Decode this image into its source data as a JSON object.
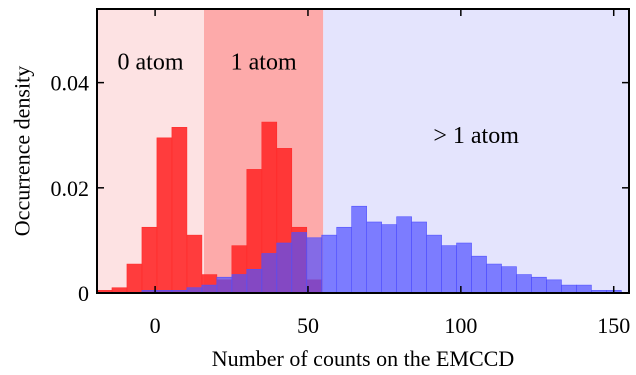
{
  "chart_data": {
    "type": "bar",
    "title": "",
    "xlabel": "Number of counts on the EMCCD",
    "ylabel": "Occurrence density",
    "xlim": [
      -19,
      155
    ],
    "ylim": [
      0,
      0.054
    ],
    "xticks": [
      0,
      50,
      100,
      150
    ],
    "yticks": [
      0,
      0.02,
      0.04
    ],
    "ytick_labels": [
      "0",
      "0.02",
      "0.04"
    ],
    "xtick_labels": [
      "0",
      "50",
      "100",
      "150"
    ],
    "grid": false,
    "bin_width": 4.9,
    "regions": [
      {
        "label": "0 atom",
        "x_start": -19,
        "x_end": 16,
        "color": "#fde2e3"
      },
      {
        "label": "1 atom",
        "x_start": 16,
        "x_end": 55,
        "color": "#fdaaaa"
      },
      {
        "label": "> 1 atom",
        "x_start": 55,
        "x_end": 155,
        "color": "#e4e4fd"
      }
    ],
    "series": [
      {
        "color": "#ff2a2a",
        "x": [
          -19,
          -14.1,
          -9.2,
          -4.3,
          0.6,
          5.5,
          10.4,
          15.3,
          20.2,
          25.1,
          30.0,
          34.9,
          39.8,
          44.7,
          49.6
        ],
        "values": [
          0.0005,
          0.001,
          0.0055,
          0.0125,
          0.0295,
          0.0315,
          0.011,
          0.0035,
          0.0025,
          0.009,
          0.0235,
          0.0325,
          0.0275,
          0.0125,
          0.0025
        ]
      },
      {
        "color": "#5050ff",
        "x": [
          -4.3,
          0.6,
          5.5,
          10.4,
          15.3,
          20.2,
          25.1,
          30.0,
          34.9,
          39.8,
          44.7,
          49.6,
          54.5,
          59.4,
          64.3,
          69.2,
          74.1,
          79.0,
          83.9,
          88.8,
          93.7,
          98.6,
          103.5,
          108.4,
          113.3,
          118.2,
          123.1,
          128.0,
          132.9,
          137.8,
          142.7,
          147.6
        ],
        "values": [
          0.0005,
          0.0005,
          0.0005,
          0.001,
          0.0015,
          0.003,
          0.0035,
          0.0045,
          0.0075,
          0.0095,
          0.0115,
          0.0105,
          0.011,
          0.0125,
          0.0165,
          0.0135,
          0.013,
          0.0145,
          0.0135,
          0.011,
          0.009,
          0.0095,
          0.007,
          0.0055,
          0.005,
          0.0035,
          0.003,
          0.0025,
          0.0015,
          0.0015,
          0.0005,
          0.0005
        ]
      }
    ]
  }
}
